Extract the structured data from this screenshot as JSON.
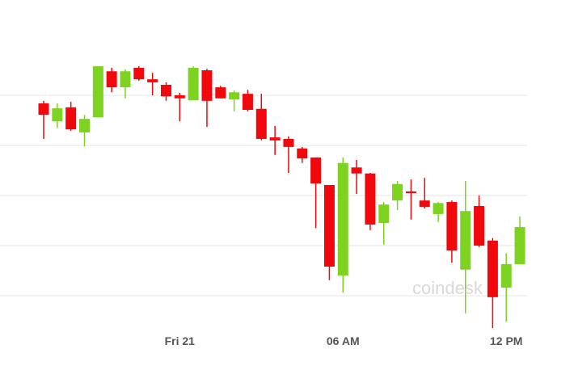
{
  "chart_data": {
    "type": "candlestick",
    "watermark": "coindesk",
    "categories": [
      null,
      null,
      null,
      null,
      null,
      null,
      null,
      null,
      null,
      null,
      "Fri 21",
      null,
      null,
      null,
      null,
      null,
      null,
      null,
      null,
      null,
      null,
      null,
      "06 AM",
      null,
      null,
      null,
      null,
      null,
      null,
      null,
      null,
      null,
      null,
      null,
      "12 PM",
      null
    ],
    "open": [
      48.4,
      44.8,
      47.6,
      42.6,
      45.6,
      54.8,
      51.6,
      55.5,
      53.2,
      52.1,
      50.0,
      49.0,
      55.0,
      51.6,
      49.2,
      50.3,
      47.3,
      41.6,
      41.3,
      39.4,
      37.6,
      32.1,
      14.0,
      35.6,
      34.4,
      24.5,
      29.0,
      30.8,
      29.0,
      26.3,
      28.7,
      15.2,
      27.9,
      21.0,
      11.6,
      16.3
    ],
    "high": [
      48.9,
      48.4,
      48.7,
      46.1,
      55.8,
      55.5,
      55.2,
      55.8,
      54.5,
      52.6,
      50.5,
      55.8,
      55.3,
      51.9,
      51.0,
      51.1,
      50.3,
      43.9,
      41.8,
      39.7,
      37.6,
      32.1,
      37.6,
      37.1,
      34.5,
      28.7,
      32.9,
      33.2,
      33.5,
      28.7,
      29.0,
      32.9,
      30.0,
      21.5,
      18.5,
      25.8
    ],
    "low": [
      41.3,
      43.5,
      42.9,
      39.8,
      45.6,
      50.6,
      49.4,
      52.9,
      50.0,
      48.9,
      44.8,
      49.0,
      43.7,
      49.4,
      46.8,
      46.8,
      41.0,
      38.1,
      34.5,
      36.5,
      23.5,
      13.1,
      10.6,
      30.3,
      23.1,
      20.2,
      27.1,
      25.2,
      27.4,
      24.7,
      16.6,
      6.5,
      19.7,
      3.5,
      4.8,
      16.3
    ],
    "close": [
      46.1,
      47.4,
      43.2,
      45.3,
      55.8,
      51.6,
      54.8,
      53.2,
      52.6,
      49.8,
      49.4,
      55.5,
      48.9,
      49.4,
      50.6,
      47.1,
      41.3,
      41.0,
      39.7,
      37.4,
      32.4,
      15.8,
      36.5,
      34.4,
      24.2,
      28.2,
      32.3,
      30.5,
      27.7,
      28.5,
      19.0,
      26.9,
      20.0,
      9.7,
      16.3,
      23.7
    ],
    "up_color": "#7ed321",
    "down_color": "#f0080d",
    "ylim": [
      0,
      60
    ],
    "ygrid": [
      10,
      20,
      30,
      40,
      50
    ]
  }
}
